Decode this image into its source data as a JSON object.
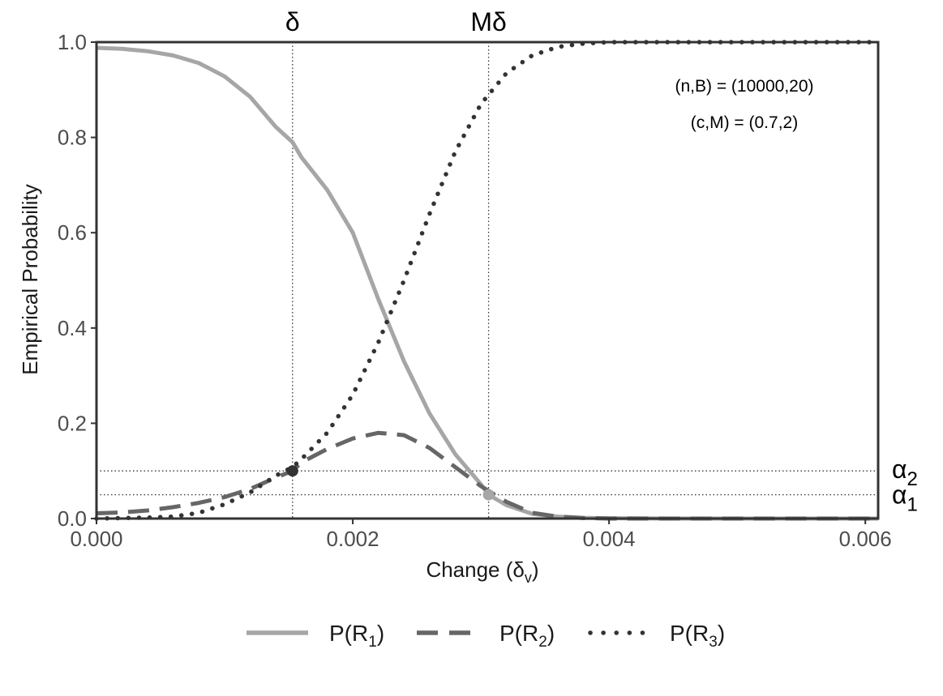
{
  "chart_data": {
    "type": "line",
    "xlabel": "Change (δv)",
    "xlabel_main": "Change (δ",
    "xlabel_sub": "v",
    "xlabel_close": ")",
    "ylabel": "Empirical Probability",
    "xlim": [
      0,
      0.0061
    ],
    "ylim": [
      0,
      1
    ],
    "x_ticks": [
      {
        "value": 0.0,
        "label": "0.000"
      },
      {
        "value": 0.002,
        "label": "0.002"
      },
      {
        "value": 0.004,
        "label": "0.004"
      },
      {
        "value": 0.006,
        "label": "0.006"
      }
    ],
    "y_ticks": [
      {
        "value": 0.0,
        "label": "0.0"
      },
      {
        "value": 0.2,
        "label": "0.2"
      },
      {
        "value": 0.4,
        "label": "0.4"
      },
      {
        "value": 0.6,
        "label": "0.6"
      },
      {
        "value": 0.8,
        "label": "0.8"
      },
      {
        "value": 1.0,
        "label": "1.0"
      }
    ],
    "vlines": [
      {
        "x": 0.00153,
        "label": "δ"
      },
      {
        "x": 0.00306,
        "label": "Mδ"
      }
    ],
    "hlines": [
      {
        "y": 0.1,
        "label_main": "α",
        "label_sub": "2"
      },
      {
        "y": 0.05,
        "label_main": "α",
        "label_sub": "1"
      }
    ],
    "points": [
      {
        "x": 0.00153,
        "y": 0.1,
        "color": "#333333"
      },
      {
        "x": 0.00306,
        "y": 0.05,
        "color": "#a6a6a6"
      }
    ],
    "annotations": [
      "(n,B) = (10000,20)",
      "(c,M) = (0.7,2)"
    ],
    "series": [
      {
        "name": "P(R1)",
        "legend_main": "P(R",
        "legend_sub": "1",
        "legend_close": ")",
        "style": "solid",
        "color": "#a6a6a6",
        "x": [
          0.0,
          0.0002,
          0.0004,
          0.0006,
          0.0008,
          0.001,
          0.0012,
          0.0014,
          0.00153,
          0.0016,
          0.0018,
          0.002,
          0.0022,
          0.0024,
          0.0026,
          0.0028,
          0.003,
          0.00306,
          0.0032,
          0.0034,
          0.0036,
          0.0038,
          0.004,
          0.0045,
          0.005,
          0.0055,
          0.0061
        ],
        "y": [
          0.988,
          0.986,
          0.981,
          0.972,
          0.956,
          0.928,
          0.885,
          0.822,
          0.79,
          0.758,
          0.69,
          0.6,
          0.46,
          0.33,
          0.22,
          0.135,
          0.072,
          0.05,
          0.028,
          0.01,
          0.004,
          0.0015,
          0.0006,
          0.0,
          0.0,
          0.0,
          0.0
        ]
      },
      {
        "name": "P(R2)",
        "legend_main": "P(R",
        "legend_sub": "2",
        "legend_close": ")",
        "style": "dashed",
        "color": "#666666",
        "x": [
          0.0,
          0.0002,
          0.0004,
          0.0006,
          0.0008,
          0.001,
          0.0012,
          0.0014,
          0.00153,
          0.0016,
          0.0018,
          0.002,
          0.0022,
          0.0024,
          0.0026,
          0.0028,
          0.003,
          0.0032,
          0.0034,
          0.0036,
          0.0038,
          0.004,
          0.0045,
          0.005,
          0.0055,
          0.0061
        ],
        "y": [
          0.011,
          0.013,
          0.017,
          0.024,
          0.033,
          0.045,
          0.062,
          0.086,
          0.1,
          0.118,
          0.146,
          0.168,
          0.18,
          0.175,
          0.148,
          0.108,
          0.068,
          0.035,
          0.012,
          0.004,
          0.001,
          0.0,
          0.0,
          0.0,
          0.0,
          0.0
        ]
      },
      {
        "name": "P(R3)",
        "legend_main": "P(R",
        "legend_sub": "3",
        "legend_close": ")",
        "style": "dotted",
        "color": "#333333",
        "x": [
          0.0,
          0.0002,
          0.0004,
          0.0006,
          0.0008,
          0.001,
          0.0012,
          0.0014,
          0.00153,
          0.0016,
          0.0018,
          0.002,
          0.0022,
          0.0024,
          0.0026,
          0.0028,
          0.003,
          0.0032,
          0.0034,
          0.0036,
          0.0038,
          0.004,
          0.0045,
          0.005,
          0.0055,
          0.0061
        ],
        "y": [
          0.0,
          0.001,
          0.002,
          0.004,
          0.012,
          0.03,
          0.055,
          0.09,
          0.108,
          0.125,
          0.18,
          0.26,
          0.37,
          0.5,
          0.64,
          0.77,
          0.87,
          0.935,
          0.972,
          0.99,
          0.997,
          1.0,
          1.0,
          1.0,
          1.0,
          1.0
        ]
      }
    ]
  }
}
